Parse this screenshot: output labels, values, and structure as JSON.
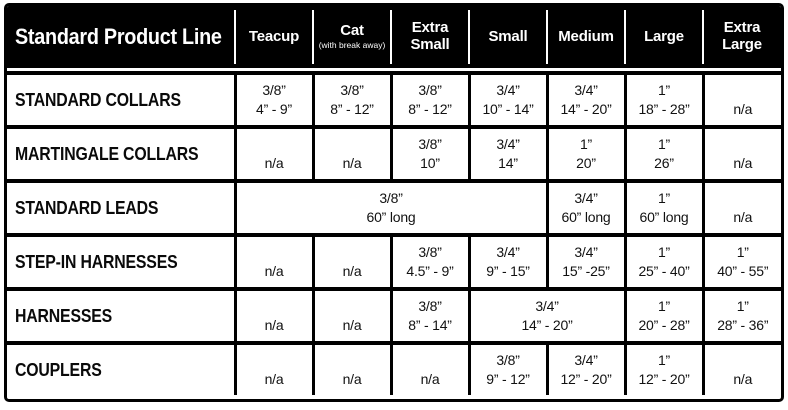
{
  "table": {
    "title": "Standard Product Line",
    "columns": [
      {
        "label": "Teacup",
        "sub": ""
      },
      {
        "label": "Cat",
        "sub": "(with break away)"
      },
      {
        "label": "Extra Small",
        "sub": ""
      },
      {
        "label": "Small",
        "sub": ""
      },
      {
        "label": "Medium",
        "sub": ""
      },
      {
        "label": "Large",
        "sub": ""
      },
      {
        "label": "Extra Large",
        "sub": ""
      }
    ],
    "rows": [
      {
        "label": "STANDARD COLLARS",
        "cells": [
          {
            "size": "3/8”",
            "range": "4” - 9”",
            "span": 1
          },
          {
            "size": "3/8”",
            "range": "8” - 12”",
            "span": 1
          },
          {
            "size": "3/8”",
            "range": "8” - 12”",
            "span": 1
          },
          {
            "size": "3/4”",
            "range": "10” - 14”",
            "span": 1
          },
          {
            "size": "3/4”",
            "range": "14” - 20”",
            "span": 1
          },
          {
            "size": "1”",
            "range": "18” - 28”",
            "span": 1
          },
          {
            "size": "",
            "range": "n/a",
            "span": 1
          }
        ]
      },
      {
        "label": "MARTINGALE COLLARS",
        "cells": [
          {
            "size": "",
            "range": "n/a",
            "span": 1
          },
          {
            "size": "",
            "range": "n/a",
            "span": 1
          },
          {
            "size": "3/8”",
            "range": "10”",
            "span": 1
          },
          {
            "size": "3/4”",
            "range": "14”",
            "span": 1
          },
          {
            "size": "1”",
            "range": "20”",
            "span": 1
          },
          {
            "size": "1”",
            "range": "26”",
            "span": 1
          },
          {
            "size": "",
            "range": "n/a",
            "span": 1
          }
        ]
      },
      {
        "label": "STANDARD LEADS",
        "cells": [
          {
            "size": "3/8”",
            "range": "60” long",
            "span": 4
          },
          {
            "size": "3/4”",
            "range": "60” long",
            "span": 1
          },
          {
            "size": "1”",
            "range": "60” long",
            "span": 1
          },
          {
            "size": "",
            "range": "n/a",
            "span": 1
          }
        ]
      },
      {
        "label": "STEP-IN HARNESSES",
        "cells": [
          {
            "size": "",
            "range": "n/a",
            "span": 1
          },
          {
            "size": "",
            "range": "n/a",
            "span": 1
          },
          {
            "size": "3/8”",
            "range": "4.5” - 9”",
            "span": 1
          },
          {
            "size": "3/4”",
            "range": "9” - 15”",
            "span": 1
          },
          {
            "size": "3/4”",
            "range": "15” -25”",
            "span": 1
          },
          {
            "size": "1”",
            "range": "25” - 40”",
            "span": 1
          },
          {
            "size": "1”",
            "range": "40” - 55”",
            "span": 1
          }
        ]
      },
      {
        "label": "HARNESSES",
        "cells": [
          {
            "size": "",
            "range": "n/a",
            "span": 1
          },
          {
            "size": "",
            "range": "n/a",
            "span": 1
          },
          {
            "size": "3/8”",
            "range": "8” - 14”",
            "span": 1
          },
          {
            "size": "3/4”",
            "range": "14” - 20”",
            "span": 2
          },
          {
            "size": "1”",
            "range": "20” - 28”",
            "span": 1
          },
          {
            "size": "1”",
            "range": "28” - 36”",
            "span": 1
          }
        ]
      },
      {
        "label": "COUPLERS",
        "cells": [
          {
            "size": "",
            "range": "n/a",
            "span": 1
          },
          {
            "size": "",
            "range": "n/a",
            "span": 1
          },
          {
            "size": "",
            "range": "n/a",
            "span": 1
          },
          {
            "size": "3/8”",
            "range": "9” - 12”",
            "span": 1
          },
          {
            "size": "3/4”",
            "range": "12” - 20”",
            "span": 1
          },
          {
            "size": "1”",
            "range": "12” - 20”",
            "span": 1
          },
          {
            "size": "",
            "range": "n/a",
            "span": 1
          }
        ]
      }
    ]
  },
  "colors": {
    "header_bg": "#000000",
    "header_text": "#ffffff",
    "border": "#000000",
    "cell_text": "#111111",
    "background": "#ffffff"
  }
}
